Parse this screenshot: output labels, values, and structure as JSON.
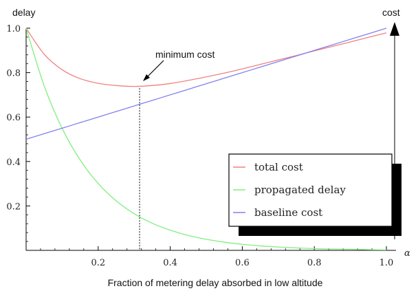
{
  "chart_data": {
    "type": "line",
    "xlabel": "Fraction of metering delay absorbed in low altitude",
    "ylabel_left": "delay",
    "ylabel_right": "cost",
    "x_axis_symbol": "α",
    "xlim": [
      0,
      1
    ],
    "ylim": [
      0,
      1
    ],
    "xticks": [
      "0.2",
      "0.4",
      "0.6",
      "0.8",
      "1.0"
    ],
    "yticks": [
      "0.2",
      "0.4",
      "0.6",
      "0.8",
      "1.0"
    ],
    "grid": false,
    "legend_position": "bottom-right",
    "x": [
      0,
      0.05,
      0.1,
      0.15,
      0.2,
      0.25,
      0.3,
      0.35,
      0.4,
      0.45,
      0.5,
      0.55,
      0.6,
      0.65,
      0.7,
      0.75,
      0.8,
      0.85,
      0.9,
      0.95,
      1.0
    ],
    "series": [
      {
        "name": "total cost",
        "color": "#f08080",
        "values": [
          1.0,
          0.883,
          0.813,
          0.773,
          0.752,
          0.742,
          0.738,
          0.742,
          0.751,
          0.765,
          0.781,
          0.798,
          0.817,
          0.837,
          0.857,
          0.877,
          0.898,
          0.918,
          0.938,
          0.959,
          0.979
        ]
      },
      {
        "name": "propagated delay",
        "color": "#80ee80",
        "values": [
          1.0,
          0.741,
          0.549,
          0.407,
          0.301,
          0.223,
          0.165,
          0.122,
          0.091,
          0.067,
          0.05,
          0.037,
          0.027,
          0.02,
          0.015,
          0.011,
          0.008,
          0.006,
          0.005,
          0.003,
          0.002
        ]
      },
      {
        "name": "baseline cost",
        "color": "#8080f0",
        "values": [
          0.5,
          0.525,
          0.55,
          0.575,
          0.6,
          0.625,
          0.65,
          0.675,
          0.7,
          0.725,
          0.75,
          0.775,
          0.8,
          0.825,
          0.85,
          0.875,
          0.9,
          0.925,
          0.95,
          0.975,
          1.0
        ]
      }
    ],
    "annotation": {
      "text": "minimum cost",
      "x": 0.315,
      "y": 0.73
    }
  }
}
